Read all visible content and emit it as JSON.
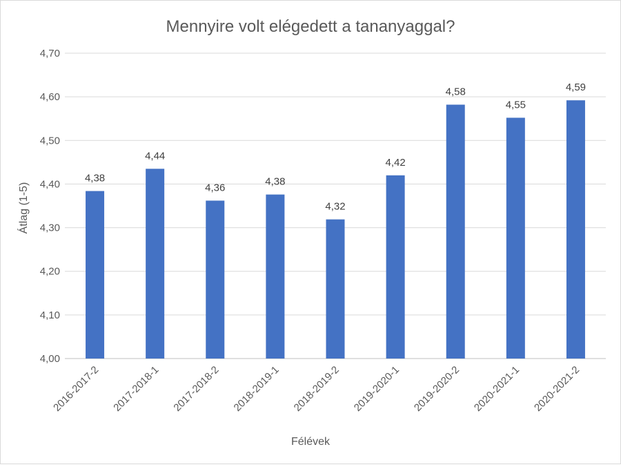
{
  "chart_data": {
    "type": "bar",
    "title": "Mennyire volt elégedett a tananyaggal?",
    "xlabel": "Félévek",
    "ylabel": "Átlag (1-5)",
    "categories": [
      "2016-2017-2",
      "2017-2018-1",
      "2017-2018-2",
      "2018-2019-1",
      "2018-2019-2",
      "2019-2020-1",
      "2019-2020-2",
      "2020-2021-1",
      "2020-2021-2"
    ],
    "values": [
      4.384,
      4.435,
      4.362,
      4.376,
      4.319,
      4.42,
      4.582,
      4.552,
      4.592
    ],
    "data_labels": [
      "4,38",
      "4,44",
      "4,36",
      "4,38",
      "4,32",
      "4,42",
      "4,58",
      "4,55",
      "4,59"
    ],
    "ylim": [
      4.0,
      4.7
    ],
    "yticks": [
      "4,00",
      "4,10",
      "4,20",
      "4,30",
      "4,40",
      "4,50",
      "4,60",
      "4,70"
    ],
    "grid": true,
    "legend": "none",
    "bar_color": "#4472C4"
  }
}
